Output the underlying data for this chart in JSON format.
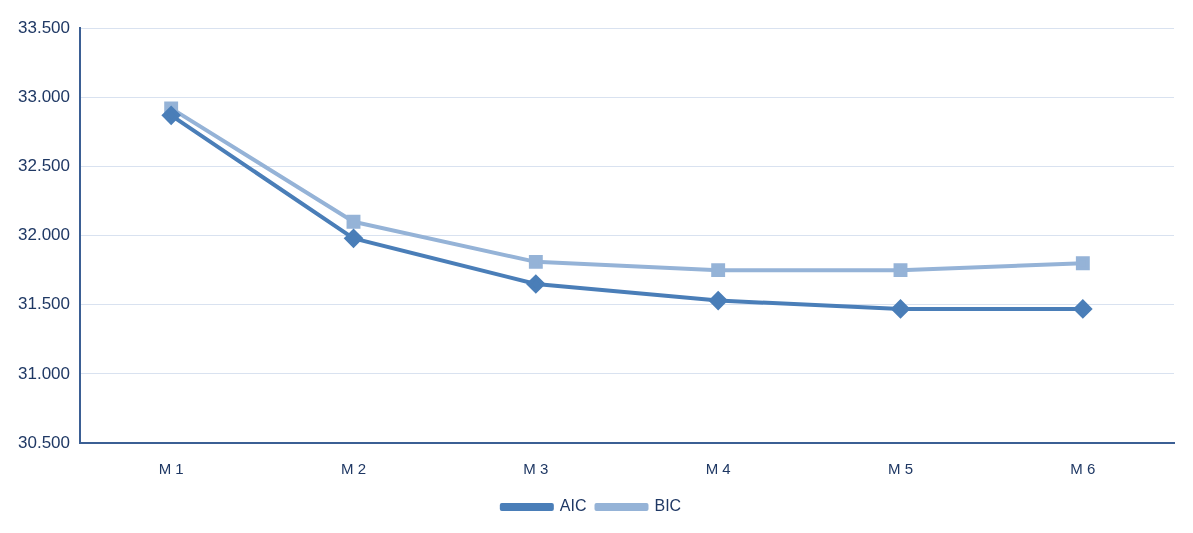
{
  "chart_data": {
    "type": "line",
    "categories": [
      "M 1",
      "M 2",
      "M 3",
      "M 4",
      "M 5",
      "M 6"
    ],
    "series": [
      {
        "name": "AIC",
        "color": "#4a7eb8",
        "marker": "diamond",
        "values": [
          32870,
          31980,
          31650,
          31530,
          31470,
          31470
        ]
      },
      {
        "name": "BIC",
        "color": "#95b3d7",
        "marker": "square",
        "values": [
          32920,
          32100,
          31810,
          31750,
          31750,
          31800
        ]
      }
    ],
    "ylim": [
      30500,
      33500
    ],
    "yticks": [
      {
        "value": 30500,
        "label": "30.500"
      },
      {
        "value": 31000,
        "label": "31.000"
      },
      {
        "value": 31500,
        "label": "31.500"
      },
      {
        "value": 32000,
        "label": "32.000"
      },
      {
        "value": 32500,
        "label": "32.500"
      },
      {
        "value": 33000,
        "label": "33.000"
      },
      {
        "value": 33500,
        "label": "33.500"
      }
    ],
    "grid": "y",
    "legend": "bottom",
    "line_style": "solid"
  }
}
